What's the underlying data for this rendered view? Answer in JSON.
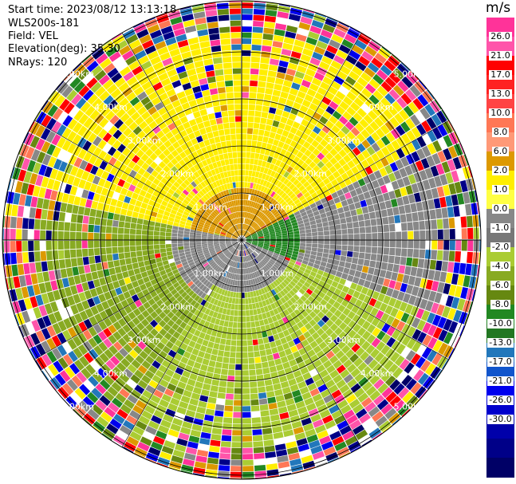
{
  "info": {
    "start_time": "Start time: 2023/08/12 13:13:18",
    "station": "WLS200s-181",
    "field": "Field: VEL",
    "elevation": "Elevation(deg): 35.30",
    "nrays": "NRays: 120"
  },
  "range_rings_km": [
    1,
    2,
    3,
    4,
    5
  ],
  "range_labels": [
    "1.00km",
    "2.00km",
    "3.00km",
    "4.00km",
    "5.00km"
  ],
  "colorbar": {
    "unit": "m/s",
    "colors": [
      "#ff3399",
      "#ff55aa",
      "#ff0000",
      "#ff2222",
      "#ff4444",
      "#ff7755",
      "#ff9977",
      "#dd9900",
      "#ffee00",
      "#ffff44",
      "#888888",
      "#777777",
      "#aacc33",
      "#88aa22",
      "#668811",
      "#228822",
      "#227722",
      "#2277bb",
      "#1155cc",
      "#0000ee",
      "#0000cc",
      "#0000aa",
      "#000088",
      "#000066"
    ],
    "labels": [
      "26.0",
      "21.0",
      "17.0",
      "13.0",
      "10.0",
      "8.0",
      "6.0",
      "2.0",
      "1.0",
      "0.0",
      "-1.0",
      "-2.0",
      "-4.0",
      "-6.0",
      "-8.0",
      "-10.0",
      "-13.0",
      "-17.0",
      "-21.0",
      "-26.0",
      "-30.0"
    ]
  }
}
